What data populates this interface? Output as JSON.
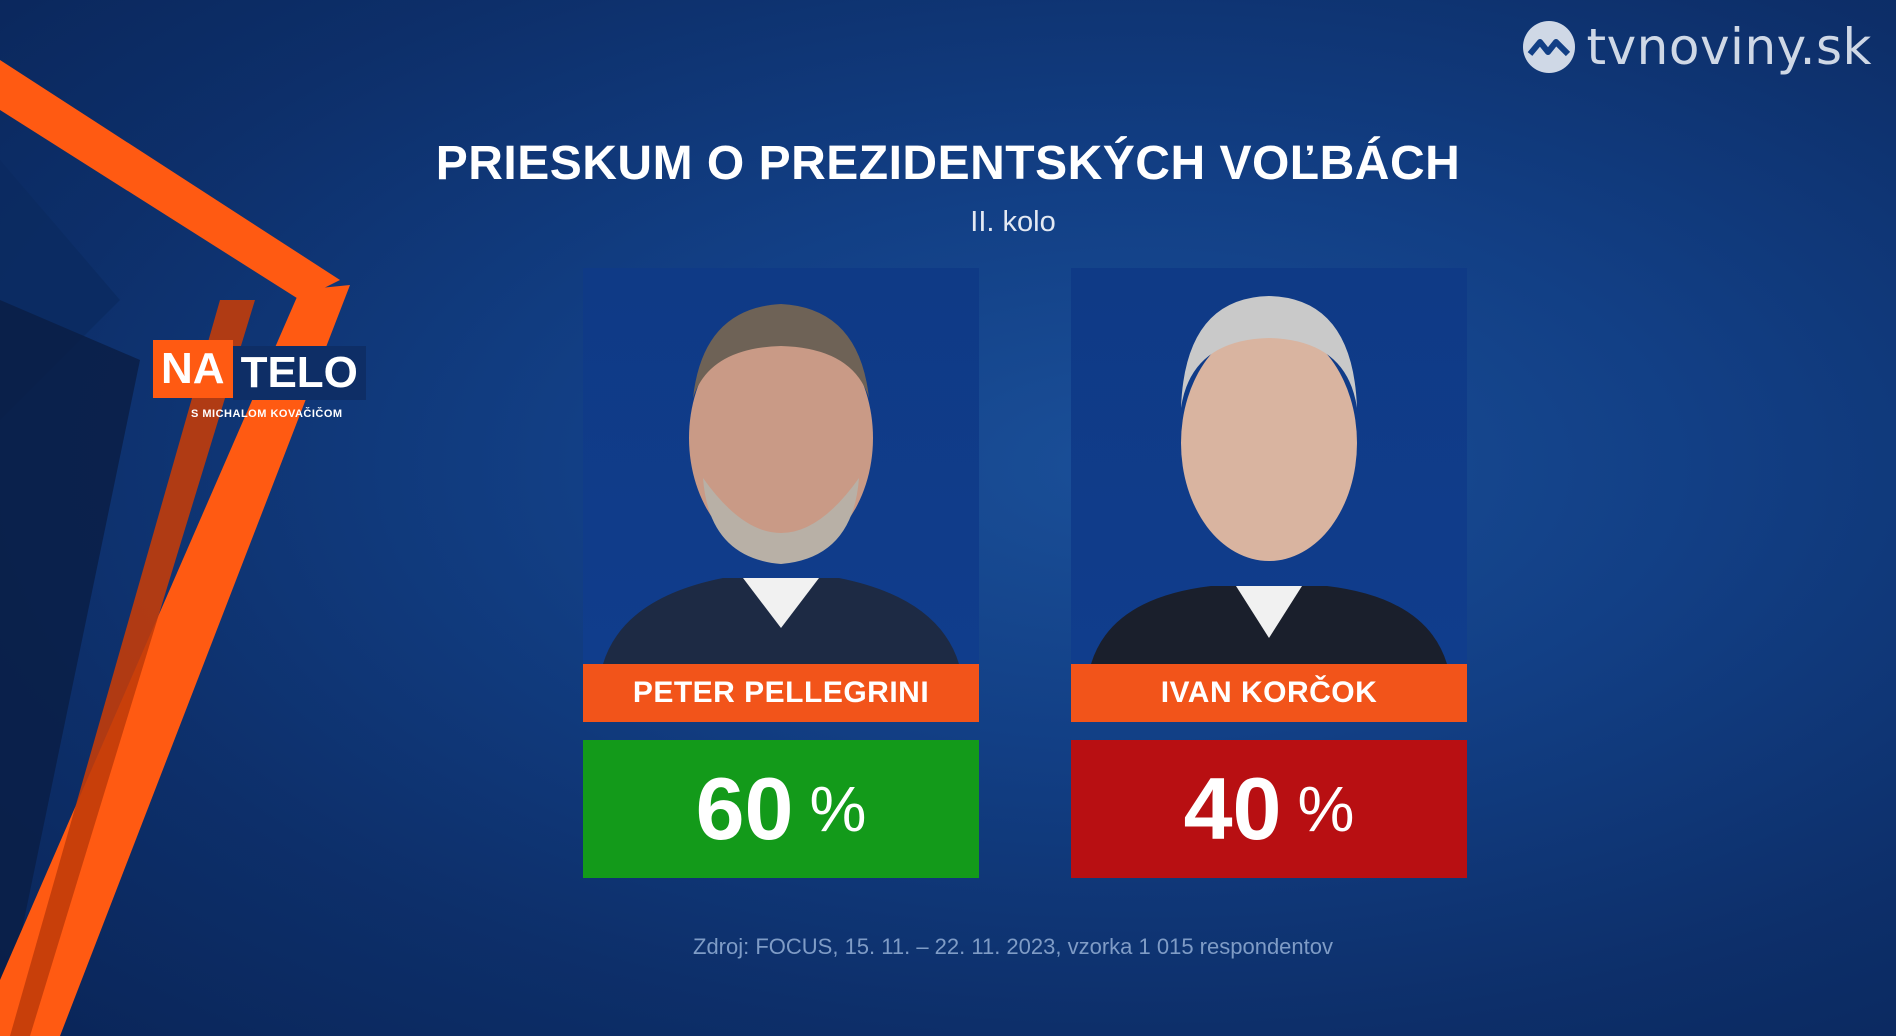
{
  "brand": {
    "site": "tvnoviny.sk",
    "icon": "tvnoviny-logo-icon"
  },
  "show": {
    "na": "NA",
    "telo": "TELO",
    "subtitle": "S MICHALOM KOVAČIČOM"
  },
  "headline": {
    "title": "PRIESKUM O PREZIDENTSKÝCH VOĽBÁCH",
    "round": "II. kolo"
  },
  "candidates": [
    {
      "name": "PETER PELLEGRINI",
      "value": "60",
      "unit": "%",
      "color": "#139a1a"
    },
    {
      "name": "IVAN KORČOK",
      "value": "40",
      "unit": "%",
      "color": "#b80f12"
    }
  ],
  "source": "Zdroj: FOCUS, 15. 11. – 22. 11. 2023, vzorka 1 015 respondentov",
  "colors": {
    "accent_orange": "#f2541a",
    "background": "#123f85"
  }
}
